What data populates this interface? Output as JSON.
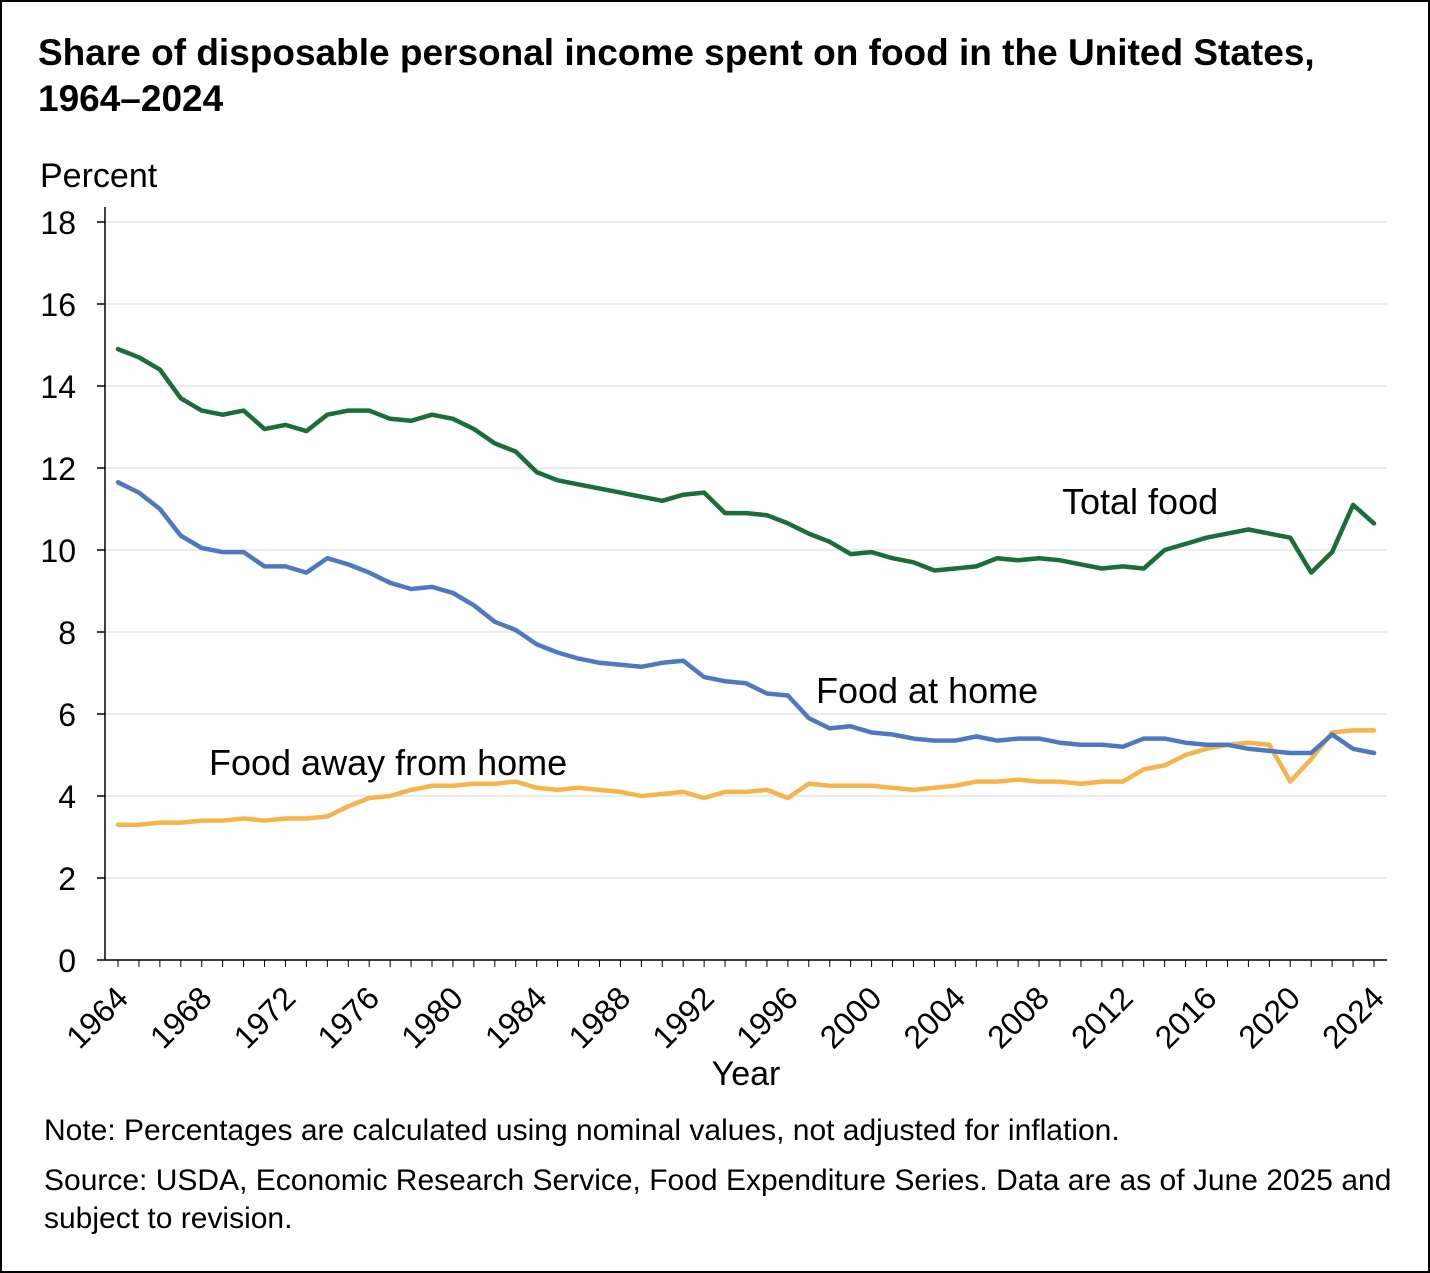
{
  "title": "Share of disposable personal income spent on food in the United States, 1964–2024",
  "note": "Note: Percentages are calculated using nominal values, not adjusted for inflation.",
  "source": "Source: USDA, Economic Research Service, Food Expenditure Series. Data are as of June 2025 and subject to revision.",
  "colors": {
    "total": "#1a6e3a",
    "home": "#4e79c2",
    "away": "#f7b44c",
    "grid": "#d9d9d9"
  },
  "chart_data": {
    "type": "line",
    "title": "Share of disposable personal income spent on food in the United States, 1964–2024",
    "xlabel": "Year",
    "ylabel": "Percent",
    "xlim": [
      1964,
      2024
    ],
    "ylim": [
      0,
      18
    ],
    "yticks": [
      0,
      2,
      4,
      6,
      8,
      10,
      12,
      14,
      16,
      18
    ],
    "xticks": [
      1964,
      1968,
      1972,
      1976,
      1980,
      1984,
      1988,
      1992,
      1996,
      2000,
      2004,
      2008,
      2012,
      2016,
      2020,
      2024
    ],
    "grid": true,
    "x": [
      1964,
      1965,
      1966,
      1967,
      1968,
      1969,
      1970,
      1971,
      1972,
      1973,
      1974,
      1975,
      1976,
      1977,
      1978,
      1979,
      1980,
      1981,
      1982,
      1983,
      1984,
      1985,
      1986,
      1987,
      1988,
      1989,
      1990,
      1991,
      1992,
      1993,
      1994,
      1995,
      1996,
      1997,
      1998,
      1999,
      2000,
      2001,
      2002,
      2003,
      2004,
      2005,
      2006,
      2007,
      2008,
      2009,
      2010,
      2011,
      2012,
      2013,
      2014,
      2015,
      2016,
      2017,
      2018,
      2019,
      2020,
      2021,
      2022,
      2023,
      2024
    ],
    "series": [
      {
        "name": "Total food",
        "key": "total",
        "values": [
          14.9,
          14.7,
          14.4,
          13.7,
          13.4,
          13.3,
          13.4,
          12.95,
          13.05,
          12.9,
          13.3,
          13.4,
          13.4,
          13.2,
          13.15,
          13.3,
          13.2,
          12.95,
          12.6,
          12.4,
          11.9,
          11.7,
          11.6,
          11.5,
          11.4,
          11.3,
          11.2,
          11.35,
          11.4,
          10.9,
          10.9,
          10.85,
          10.65,
          10.4,
          10.2,
          9.9,
          9.95,
          9.8,
          9.7,
          9.5,
          9.55,
          9.6,
          9.8,
          9.75,
          9.8,
          9.75,
          9.65,
          9.55,
          9.6,
          9.55,
          10.0,
          10.15,
          10.3,
          10.4,
          10.5,
          10.4,
          10.3,
          9.45,
          9.95,
          11.1,
          10.65
        ]
      },
      {
        "name": "Food at home",
        "key": "home",
        "values": [
          11.65,
          11.4,
          11.0,
          10.35,
          10.05,
          9.95,
          9.95,
          9.6,
          9.6,
          9.45,
          9.8,
          9.65,
          9.45,
          9.2,
          9.05,
          9.1,
          8.95,
          8.65,
          8.25,
          8.05,
          7.7,
          7.5,
          7.35,
          7.25,
          7.2,
          7.15,
          7.25,
          7.3,
          6.9,
          6.8,
          6.75,
          6.5,
          6.45,
          5.9,
          5.65,
          5.7,
          5.55,
          5.5,
          5.4,
          5.35,
          5.35,
          5.45,
          5.35,
          5.4,
          5.4,
          5.3,
          5.25,
          5.25,
          5.2,
          5.4,
          5.4,
          5.3,
          5.25,
          5.25,
          5.15,
          5.1,
          5.05,
          5.05,
          5.5,
          5.15,
          5.05
        ]
      },
      {
        "name": "Food away from home",
        "key": "away",
        "values": [
          3.3,
          3.3,
          3.35,
          3.35,
          3.4,
          3.4,
          3.45,
          3.4,
          3.45,
          3.45,
          3.5,
          3.75,
          3.95,
          4.0,
          4.15,
          4.25,
          4.25,
          4.3,
          4.3,
          4.35,
          4.2,
          4.15,
          4.2,
          4.15,
          4.1,
          4.0,
          4.05,
          4.1,
          3.95,
          4.1,
          4.1,
          4.15,
          3.95,
          4.3,
          4.25,
          4.25,
          4.25,
          4.2,
          4.15,
          4.2,
          4.25,
          4.35,
          4.35,
          4.4,
          4.35,
          4.35,
          4.3,
          4.35,
          4.35,
          4.65,
          4.75,
          5.0,
          5.15,
          5.25,
          5.3,
          5.25,
          4.35,
          4.9,
          5.55,
          5.6,
          5.6
        ]
      }
    ],
    "annotations": [
      {
        "text": "Total food",
        "series": "total"
      },
      {
        "text": "Food at home",
        "series": "home"
      },
      {
        "text": "Food away from home",
        "series": "away"
      }
    ]
  }
}
